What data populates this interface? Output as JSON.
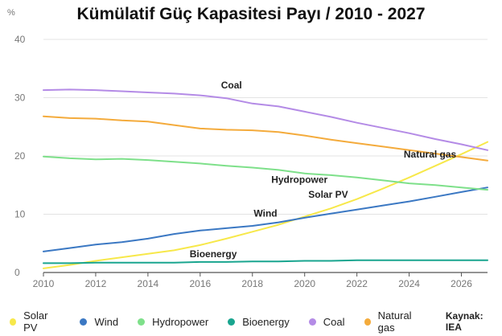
{
  "chart_data": {
    "type": "line",
    "title": "Kümülatif Güç Kapasitesi Payı / 2010 - 2027",
    "unit": "%",
    "ylim": [
      0,
      40
    ],
    "yticks": [
      0,
      10,
      20,
      30,
      40
    ],
    "xlim": [
      2010,
      2027
    ],
    "xticks": [
      2010,
      2012,
      2014,
      2016,
      2018,
      2020,
      2022,
      2024,
      2026
    ],
    "grid": true,
    "legend_position": "bottom",
    "source": "Kaynak: IEA",
    "x": [
      2010,
      2011,
      2012,
      2013,
      2014,
      2015,
      2016,
      2017,
      2018,
      2019,
      2020,
      2021,
      2022,
      2023,
      2024,
      2025,
      2026,
      2027
    ],
    "series": [
      {
        "name": "Solar PV",
        "color": "#f7e84a",
        "values": [
          0.7,
          1.3,
          2.0,
          2.6,
          3.2,
          3.8,
          4.7,
          5.8,
          7.0,
          8.2,
          9.6,
          11.0,
          12.6,
          14.4,
          16.3,
          18.3,
          20.3,
          22.4
        ]
      },
      {
        "name": "Wind",
        "color": "#3b78c3",
        "values": [
          3.6,
          4.2,
          4.8,
          5.2,
          5.8,
          6.6,
          7.2,
          7.6,
          8.0,
          8.6,
          9.4,
          10.1,
          10.8,
          11.5,
          12.2,
          13.0,
          13.8,
          14.6
        ]
      },
      {
        "name": "Hydropower",
        "color": "#7ee08a",
        "values": [
          19.9,
          19.6,
          19.4,
          19.5,
          19.3,
          19.0,
          18.7,
          18.3,
          18.0,
          17.6,
          17.0,
          16.7,
          16.3,
          15.8,
          15.3,
          15.0,
          14.6,
          14.2
        ]
      },
      {
        "name": "Bioenergy",
        "color": "#19a58f",
        "values": [
          1.6,
          1.6,
          1.7,
          1.7,
          1.7,
          1.7,
          1.8,
          1.8,
          1.9,
          1.9,
          2.0,
          2.0,
          2.1,
          2.1,
          2.1,
          2.1,
          2.1,
          2.1
        ]
      },
      {
        "name": "Coal",
        "color": "#b48be6",
        "values": [
          31.3,
          31.4,
          31.3,
          31.1,
          30.9,
          30.7,
          30.4,
          29.9,
          29.0,
          28.5,
          27.6,
          26.7,
          25.7,
          24.8,
          23.9,
          22.9,
          22.0,
          21.0
        ]
      },
      {
        "name": "Natural gas",
        "color": "#f4ab3c",
        "values": [
          26.8,
          26.5,
          26.4,
          26.1,
          25.9,
          25.3,
          24.7,
          24.5,
          24.4,
          24.1,
          23.5,
          22.8,
          22.2,
          21.6,
          21.0,
          20.4,
          19.8,
          19.2
        ]
      }
    ],
    "annotations": [
      {
        "text": "Coal",
        "x": 2017.2,
        "y": 31.6
      },
      {
        "text": "Natural gas",
        "x": 2024.8,
        "y": 19.7
      },
      {
        "text": "Hydropower",
        "x": 2019.8,
        "y": 15.4
      },
      {
        "text": "Solar PV",
        "x": 2020.9,
        "y": 12.8
      },
      {
        "text": "Wind",
        "x": 2018.5,
        "y": 9.6
      },
      {
        "text": "Bioenergy",
        "x": 2016.5,
        "y": 2.6
      }
    ]
  }
}
